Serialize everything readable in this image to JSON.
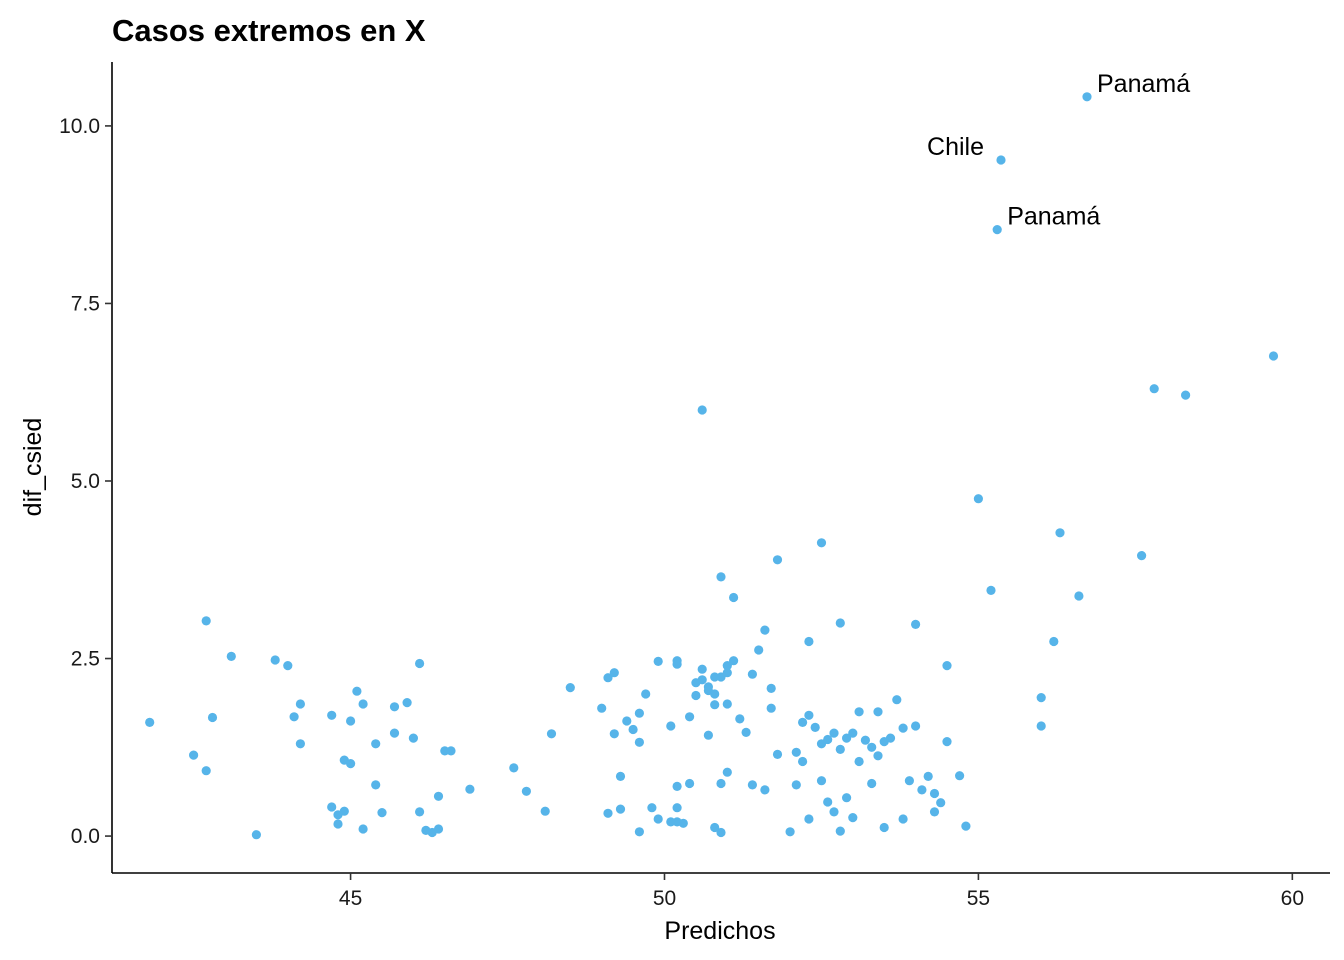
{
  "chart_data": {
    "type": "scatter",
    "title": "Casos extremos en X",
    "xlabel": "Predichos",
    "ylabel": "dif_csied",
    "xlim": [
      41.2,
      60.6
    ],
    "ylim": [
      -0.52,
      10.9
    ],
    "x_ticks": [
      {
        "value": 45,
        "label": "45"
      },
      {
        "value": 50,
        "label": "50"
      },
      {
        "value": 55,
        "label": "55"
      },
      {
        "value": 60,
        "label": "60"
      }
    ],
    "y_ticks": [
      {
        "value": 0,
        "label": "0.0"
      },
      {
        "value": 2.5,
        "label": "2.5"
      },
      {
        "value": 5,
        "label": "5.0"
      },
      {
        "value": 7.5,
        "label": "7.5"
      },
      {
        "value": 10,
        "label": "10.0"
      }
    ],
    "grid": false,
    "point_color": "#56B4E9",
    "annotations": [
      {
        "text": "Panamá",
        "x": 56.73,
        "y": 10.41,
        "position": "right"
      },
      {
        "text": "Chile",
        "x": 55.36,
        "y": 9.52,
        "position": "left"
      },
      {
        "text": "Panamá",
        "x": 55.3,
        "y": 8.54,
        "position": "right"
      }
    ],
    "points": [
      [
        41.8,
        1.6
      ],
      [
        42.5,
        1.14
      ],
      [
        42.7,
        3.03
      ],
      [
        42.7,
        0.92
      ],
      [
        42.8,
        1.67
      ],
      [
        43.1,
        2.53
      ],
      [
        43.5,
        0.02
      ],
      [
        43.8,
        2.48
      ],
      [
        44.0,
        2.4
      ],
      [
        44.1,
        1.68
      ],
      [
        44.2,
        1.86
      ],
      [
        44.2,
        1.3
      ],
      [
        44.7,
        1.7
      ],
      [
        44.7,
        0.41
      ],
      [
        44.8,
        0.3
      ],
      [
        44.8,
        0.17
      ],
      [
        44.9,
        1.07
      ],
      [
        44.9,
        0.35
      ],
      [
        45.0,
        1.02
      ],
      [
        45.0,
        1.62
      ],
      [
        45.1,
        2.04
      ],
      [
        45.2,
        0.1
      ],
      [
        45.2,
        1.86
      ],
      [
        45.4,
        1.3
      ],
      [
        45.4,
        0.72
      ],
      [
        45.5,
        0.33
      ],
      [
        45.7,
        1.82
      ],
      [
        45.7,
        1.45
      ],
      [
        45.9,
        1.88
      ],
      [
        46.0,
        1.38
      ],
      [
        46.1,
        0.34
      ],
      [
        46.1,
        2.43
      ],
      [
        46.2,
        0.08
      ],
      [
        46.3,
        0.05
      ],
      [
        46.4,
        0.1
      ],
      [
        46.4,
        0.56
      ],
      [
        46.5,
        1.2
      ],
      [
        46.6,
        1.2
      ],
      [
        46.9,
        0.66
      ],
      [
        47.6,
        0.96
      ],
      [
        47.8,
        0.63
      ],
      [
        48.1,
        0.35
      ],
      [
        48.2,
        1.44
      ],
      [
        48.5,
        2.09
      ],
      [
        49.0,
        1.8
      ],
      [
        49.1,
        2.23
      ],
      [
        49.1,
        0.32
      ],
      [
        49.2,
        2.3
      ],
      [
        49.2,
        1.44
      ],
      [
        49.3,
        0.84
      ],
      [
        49.3,
        0.38
      ],
      [
        49.4,
        1.62
      ],
      [
        49.5,
        1.5
      ],
      [
        49.6,
        1.73
      ],
      [
        49.6,
        1.32
      ],
      [
        49.6,
        0.06
      ],
      [
        49.7,
        2.0
      ],
      [
        49.8,
        0.4
      ],
      [
        49.9,
        0.24
      ],
      [
        49.9,
        2.46
      ],
      [
        50.1,
        1.55
      ],
      [
        50.1,
        0.2
      ],
      [
        50.2,
        2.47
      ],
      [
        50.2,
        2.42
      ],
      [
        50.2,
        0.4
      ],
      [
        50.2,
        0.2
      ],
      [
        50.2,
        0.7
      ],
      [
        50.3,
        0.18
      ],
      [
        50.4,
        0.74
      ],
      [
        50.4,
        1.68
      ],
      [
        50.5,
        2.16
      ],
      [
        50.5,
        1.98
      ],
      [
        50.6,
        6.0
      ],
      [
        50.6,
        2.2
      ],
      [
        50.6,
        2.35
      ],
      [
        50.7,
        2.1
      ],
      [
        50.7,
        2.05
      ],
      [
        50.7,
        1.42
      ],
      [
        50.8,
        0.12
      ],
      [
        50.8,
        2.0
      ],
      [
        50.8,
        1.85
      ],
      [
        50.8,
        2.24
      ],
      [
        50.9,
        3.65
      ],
      [
        50.9,
        2.24
      ],
      [
        50.9,
        0.74
      ],
      [
        50.9,
        0.05
      ],
      [
        51.0,
        2.3
      ],
      [
        51.0,
        2.4
      ],
      [
        51.0,
        1.86
      ],
      [
        51.0,
        0.9
      ],
      [
        51.1,
        3.36
      ],
      [
        51.1,
        2.47
      ],
      [
        51.2,
        1.65
      ],
      [
        51.3,
        1.46
      ],
      [
        51.4,
        2.28
      ],
      [
        51.4,
        0.72
      ],
      [
        51.5,
        2.62
      ],
      [
        51.6,
        2.9
      ],
      [
        51.6,
        0.65
      ],
      [
        51.7,
        2.08
      ],
      [
        51.7,
        1.8
      ],
      [
        51.8,
        1.15
      ],
      [
        51.8,
        3.89
      ],
      [
        52.0,
        0.06
      ],
      [
        52.1,
        1.18
      ],
      [
        52.1,
        0.72
      ],
      [
        52.2,
        1.6
      ],
      [
        52.2,
        1.05
      ],
      [
        52.3,
        1.7
      ],
      [
        52.3,
        0.24
      ],
      [
        52.3,
        2.74
      ],
      [
        52.4,
        1.53
      ],
      [
        52.5,
        1.3
      ],
      [
        52.5,
        0.78
      ],
      [
        52.5,
        4.13
      ],
      [
        52.6,
        0.48
      ],
      [
        52.6,
        1.36
      ],
      [
        52.7,
        1.45
      ],
      [
        52.7,
        0.34
      ],
      [
        52.8,
        1.22
      ],
      [
        52.8,
        3.0
      ],
      [
        52.8,
        0.07
      ],
      [
        52.9,
        1.38
      ],
      [
        52.9,
        0.54
      ],
      [
        53.0,
        1.45
      ],
      [
        53.0,
        0.26
      ],
      [
        53.1,
        1.75
      ],
      [
        53.1,
        1.05
      ],
      [
        53.2,
        1.35
      ],
      [
        53.3,
        1.25
      ],
      [
        53.3,
        0.74
      ],
      [
        53.4,
        1.13
      ],
      [
        53.4,
        1.75
      ],
      [
        53.5,
        0.12
      ],
      [
        53.5,
        1.33
      ],
      [
        53.6,
        1.38
      ],
      [
        53.7,
        1.92
      ],
      [
        53.8,
        0.24
      ],
      [
        53.8,
        1.52
      ],
      [
        53.9,
        0.78
      ],
      [
        54.0,
        1.55
      ],
      [
        54.0,
        2.98
      ],
      [
        54.1,
        0.65
      ],
      [
        54.2,
        0.84
      ],
      [
        54.3,
        0.34
      ],
      [
        54.3,
        0.6
      ],
      [
        54.4,
        0.47
      ],
      [
        54.5,
        2.4
      ],
      [
        54.5,
        1.33
      ],
      [
        54.7,
        0.85
      ],
      [
        54.8,
        0.14
      ],
      [
        55.0,
        4.75
      ],
      [
        55.3,
        8.54
      ],
      [
        55.36,
        9.52
      ],
      [
        55.2,
        3.46
      ],
      [
        56.0,
        1.95
      ],
      [
        56.0,
        1.55
      ],
      [
        56.2,
        2.74
      ],
      [
        56.3,
        4.27
      ],
      [
        56.6,
        3.38
      ],
      [
        56.73,
        10.41
      ],
      [
        57.6,
        3.95
      ],
      [
        57.8,
        6.3
      ],
      [
        58.3,
        6.21
      ],
      [
        59.7,
        6.76
      ]
    ]
  }
}
